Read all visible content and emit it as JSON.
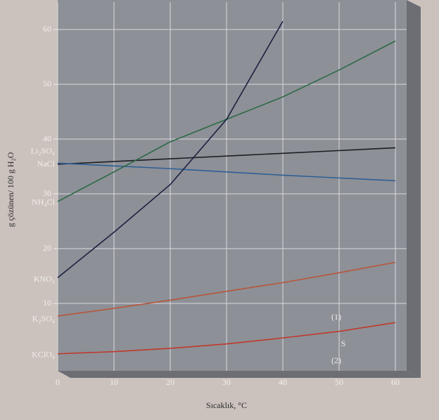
{
  "chart_data": {
    "type": "line",
    "xlabel": "Sıcaklık, °C",
    "ylabel": "g çözünen/ 100 g H₂O",
    "x": [
      0,
      10,
      20,
      30,
      40,
      50,
      60
    ],
    "series": [
      {
        "name": "Li₂SO₄",
        "color": "#1e1e24",
        "values": [
          35.4,
          35.9,
          36.4,
          36.9,
          37.4,
          37.9,
          38.4
        ]
      },
      {
        "name": "NaCl",
        "color": "#2f5f95",
        "values": [
          35.6,
          35.1,
          34.6,
          34.0,
          33.4,
          32.9,
          32.4
        ]
      },
      {
        "name": "NH₄Cl",
        "color": "#2c6a45",
        "values": [
          28.6,
          34.0,
          39.5,
          43.6,
          47.7,
          52.6,
          57.9
        ]
      },
      {
        "name": "KNO₃",
        "color": "#1c2140",
        "values": [
          14.7,
          23.0,
          31.7,
          43.6,
          61.5,
          null,
          null
        ]
      },
      {
        "name": "K₂SO₄",
        "color": "#b8563a",
        "values": [
          7.7,
          9.1,
          10.6,
          12.2,
          13.8,
          15.6,
          17.5
        ]
      },
      {
        "name": "KClO₄",
        "color": "#c0392b",
        "values": [
          0.8,
          1.2,
          1.8,
          2.6,
          3.7,
          4.9,
          6.5
        ]
      }
    ],
    "annotations": [
      "(1)",
      "S",
      "(2)"
    ],
    "xlim": [
      0,
      62
    ],
    "ylim": [
      0,
      65
    ],
    "xticks": [
      0,
      10,
      20,
      30,
      40,
      50,
      60
    ],
    "yticks": [
      10,
      20,
      30,
      40,
      50,
      60
    ],
    "grid": true
  }
}
